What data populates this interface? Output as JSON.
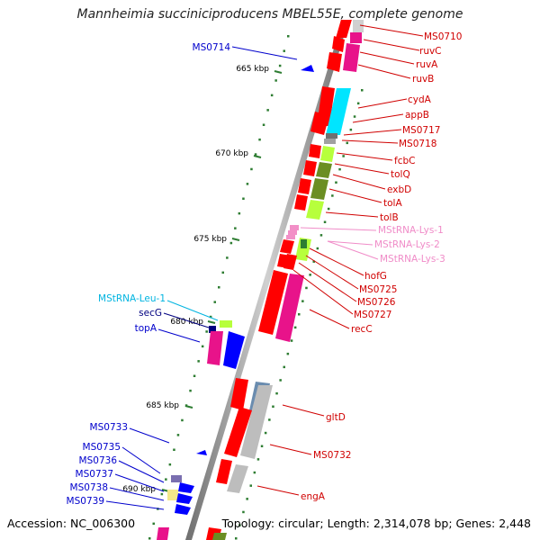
{
  "title": "Mannheimia succiniciproducens MBEL55E, complete genome",
  "footer": {
    "accession": "Accession: NC_006300",
    "topology": "Topology: circular; Length: 2,314,078 bp; Genes: 2,448"
  },
  "ticks": [
    "665 kbp",
    "670 kbp",
    "675 kbp",
    "680 kbp",
    "685 kbp",
    "690 kbp"
  ],
  "colors": {
    "red": "#ff0000",
    "magenta": "#e8138a",
    "cyan": "#00e5ff",
    "lime": "#b7ff3c",
    "olive": "#6b8e23",
    "gray": "#bdbdbd",
    "darkgray": "#707070",
    "pink": "#f28fc7",
    "blue": "#0000ff",
    "navy": "#00008b",
    "lightblue": "#00bcd4",
    "steel": "#6a8caf",
    "yellow": "#f2e68a",
    "purple": "#7a6fb0"
  },
  "labels_right": [
    {
      "text": "MS0710",
      "color": "#d00000"
    },
    {
      "text": "ruvC",
      "color": "#d00000"
    },
    {
      "text": "ruvA",
      "color": "#d00000"
    },
    {
      "text": "ruvB",
      "color": "#d00000"
    },
    {
      "text": "cydA",
      "color": "#d00000"
    },
    {
      "text": "appB",
      "color": "#d00000"
    },
    {
      "text": "MS0717",
      "color": "#d00000"
    },
    {
      "text": "MS0718",
      "color": "#d00000"
    },
    {
      "text": "fcbC",
      "color": "#d00000"
    },
    {
      "text": "tolQ",
      "color": "#d00000"
    },
    {
      "text": "exbD",
      "color": "#d00000"
    },
    {
      "text": "tolA",
      "color": "#d00000"
    },
    {
      "text": "tolB",
      "color": "#d00000"
    },
    {
      "text": "MStRNA-Lys-1",
      "color": "#f08cc8"
    },
    {
      "text": "MStRNA-Lys-2",
      "color": "#f08cc8"
    },
    {
      "text": "MStRNA-Lys-3",
      "color": "#f08cc8"
    },
    {
      "text": "hofG",
      "color": "#d00000"
    },
    {
      "text": "MS0725",
      "color": "#d00000"
    },
    {
      "text": "MS0726",
      "color": "#d00000"
    },
    {
      "text": "MS0727",
      "color": "#d00000"
    },
    {
      "text": "recC",
      "color": "#d00000"
    },
    {
      "text": "gltD",
      "color": "#d00000"
    },
    {
      "text": "MS0732",
      "color": "#d00000"
    },
    {
      "text": "engA",
      "color": "#d00000"
    }
  ],
  "labels_left": [
    {
      "text": "MS0714",
      "color": "#0000cc"
    },
    {
      "text": "MStRNA-Leu-1",
      "color": "#00b4e0"
    },
    {
      "text": "secG",
      "color": "#000080"
    },
    {
      "text": "topA",
      "color": "#0000cc"
    },
    {
      "text": "MS0733",
      "color": "#0000cc"
    },
    {
      "text": "MS0735",
      "color": "#0000cc"
    },
    {
      "text": "MS0736",
      "color": "#0000cc"
    },
    {
      "text": "MS0737",
      "color": "#0000cc"
    },
    {
      "text": "MS0738",
      "color": "#0000cc"
    },
    {
      "text": "MS0739",
      "color": "#0000cc"
    }
  ]
}
